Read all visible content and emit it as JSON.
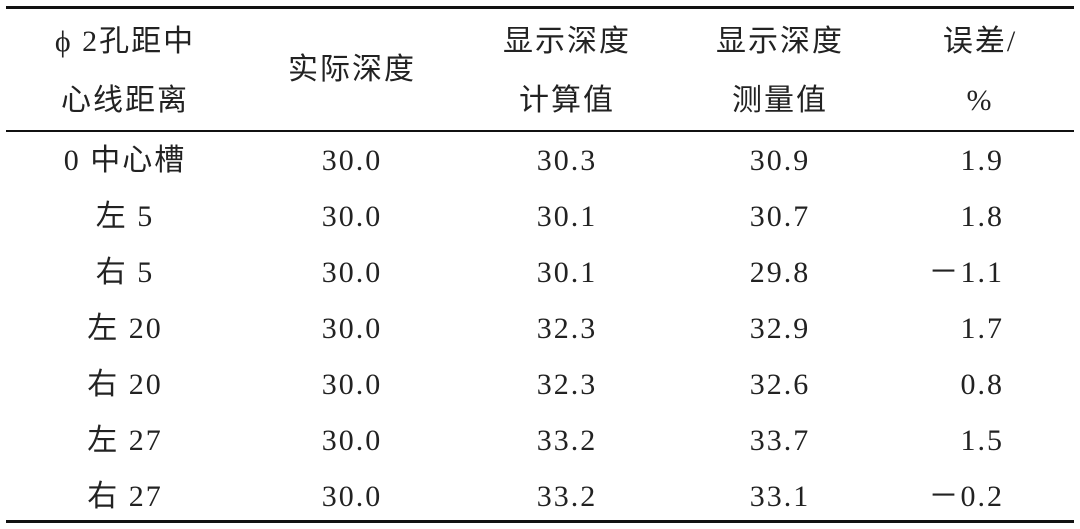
{
  "table": {
    "header": [
      [
        "ϕ 2孔距中",
        "心线距离"
      ],
      [
        "实际深度"
      ],
      [
        "显示深度",
        "计算值"
      ],
      [
        "显示深度",
        "测量值"
      ],
      [
        "误差/",
        "%"
      ]
    ],
    "rows": [
      [
        "0 中心槽",
        "30.0",
        "30.3",
        "30.9",
        "1.9"
      ],
      [
        "左 5",
        "30.0",
        "30.1",
        "30.7",
        "1.8"
      ],
      [
        "右 5",
        "30.0",
        "30.1",
        "29.8",
        "－1.1"
      ],
      [
        "左 20",
        "30.0",
        "32.3",
        "32.9",
        "1.7"
      ],
      [
        "右 20",
        "30.0",
        "32.3",
        "32.6",
        "0.8"
      ],
      [
        "左 27",
        "30.0",
        "33.2",
        "33.7",
        "1.5"
      ],
      [
        "右 27",
        "30.0",
        "33.2",
        "33.1",
        "－0.2"
      ]
    ]
  }
}
